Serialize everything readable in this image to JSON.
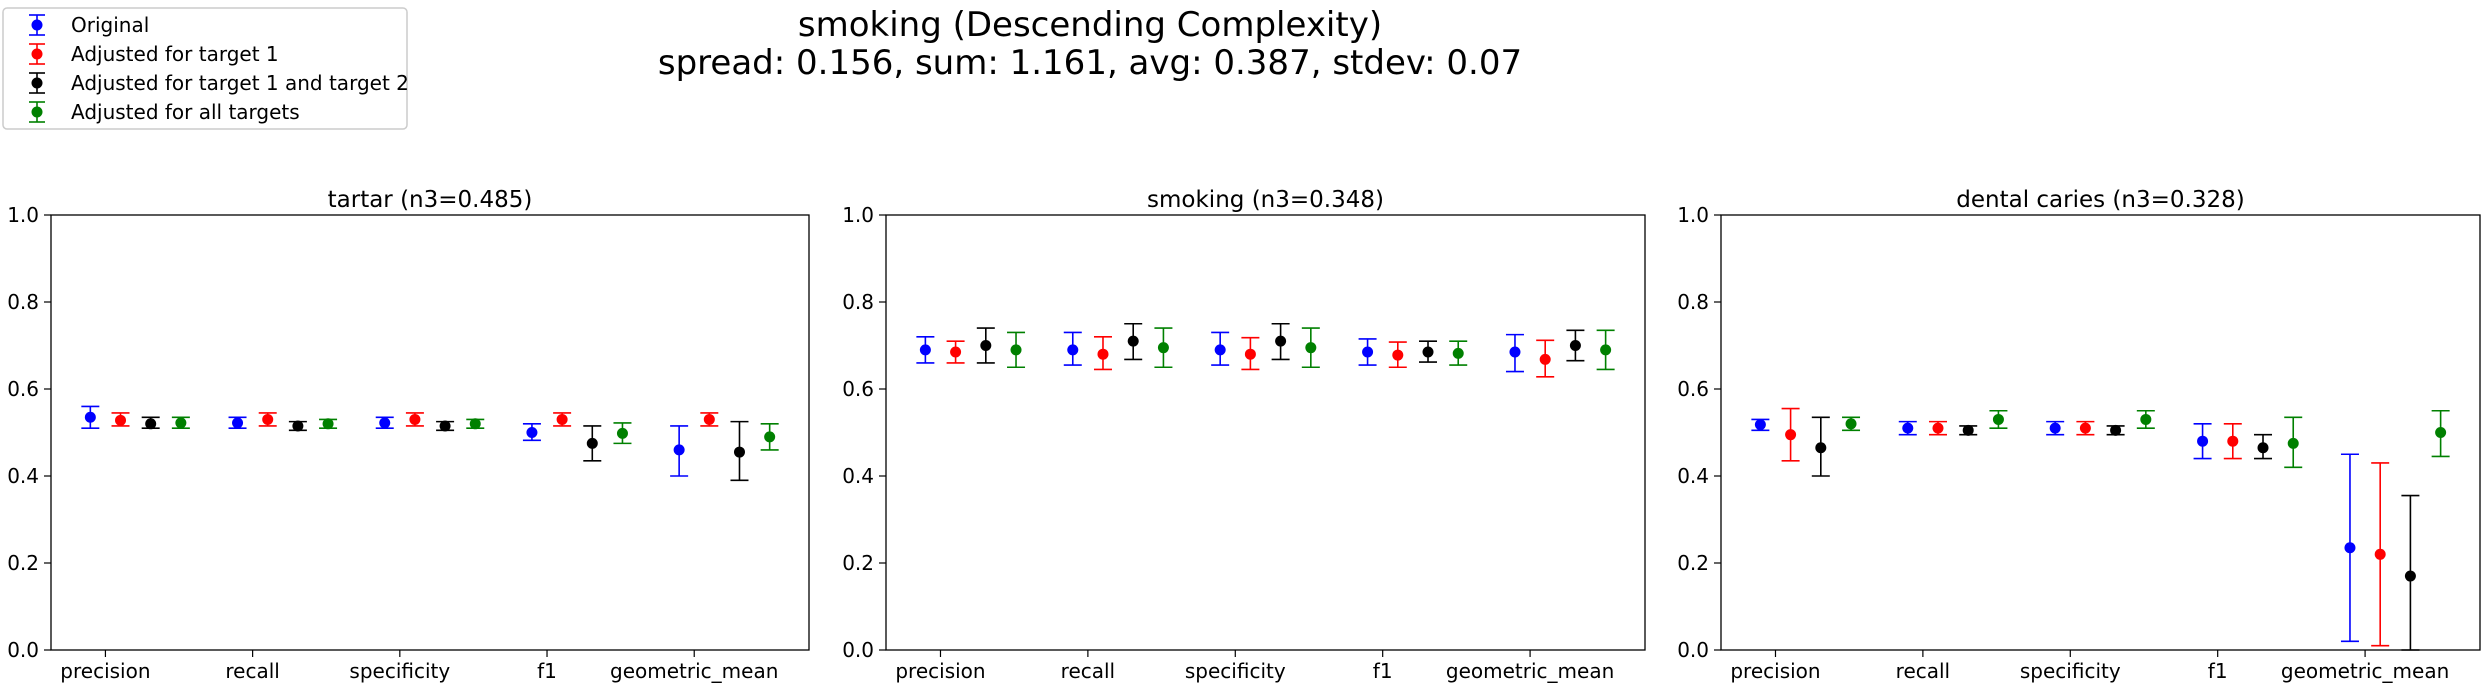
{
  "figure": {
    "title_line1": "smoking (Descending Complexity)",
    "title_line2": "spread: 0.156, sum: 1.161, avg: 0.387, stdev: 0.07"
  },
  "legend": {
    "placement": "top-left",
    "entries": [
      {
        "label": "Original",
        "color": "#0000ff"
      },
      {
        "label": "Adjusted for target 1",
        "color": "#ff0000"
      },
      {
        "label": "Adjusted for target 1 and target 2",
        "color": "#000000"
      },
      {
        "label": "Adjusted for all targets",
        "color": "#008000"
      }
    ]
  },
  "chart_data": [
    {
      "type": "scatter",
      "title": "tartar (n3=0.485)",
      "categories": [
        "precision",
        "recall",
        "specificity",
        "f1",
        "geometric_mean"
      ],
      "ylim": [
        0,
        1
      ],
      "yticks": [
        "0.0",
        "0.2",
        "0.4",
        "0.6",
        "0.8",
        "1.0"
      ],
      "grid": false,
      "series": [
        {
          "name": "Original",
          "color": "#0000ff",
          "values": [
            0.535,
            0.522,
            0.522,
            0.5,
            0.46
          ],
          "err_low": [
            0.51,
            0.51,
            0.51,
            0.482,
            0.4
          ],
          "err_high": [
            0.56,
            0.535,
            0.535,
            0.52,
            0.515
          ]
        },
        {
          "name": "Adjusted for target 1",
          "color": "#ff0000",
          "values": [
            0.528,
            0.53,
            0.53,
            0.53,
            0.53
          ],
          "err_low": [
            0.515,
            0.515,
            0.515,
            0.515,
            0.515
          ],
          "err_high": [
            0.545,
            0.545,
            0.545,
            0.545,
            0.545
          ]
        },
        {
          "name": "Adjusted for target 1 and target 2",
          "color": "#000000",
          "values": [
            0.52,
            0.515,
            0.515,
            0.475,
            0.455
          ],
          "err_low": [
            0.51,
            0.505,
            0.505,
            0.435,
            0.39
          ],
          "err_high": [
            0.535,
            0.525,
            0.525,
            0.515,
            0.525
          ]
        },
        {
          "name": "Adjusted for all targets",
          "color": "#008000",
          "values": [
            0.522,
            0.52,
            0.52,
            0.498,
            0.49
          ],
          "err_low": [
            0.51,
            0.51,
            0.51,
            0.475,
            0.46
          ],
          "err_high": [
            0.535,
            0.53,
            0.53,
            0.522,
            0.52
          ]
        }
      ]
    },
    {
      "type": "scatter",
      "title": "smoking (n3=0.348)",
      "categories": [
        "precision",
        "recall",
        "specificity",
        "f1",
        "geometric_mean"
      ],
      "ylim": [
        0,
        1
      ],
      "yticks": [
        "0.0",
        "0.2",
        "0.4",
        "0.6",
        "0.8",
        "1.0"
      ],
      "grid": false,
      "series": [
        {
          "name": "Original",
          "color": "#0000ff",
          "values": [
            0.69,
            0.69,
            0.69,
            0.685,
            0.685
          ],
          "err_low": [
            0.66,
            0.655,
            0.655,
            0.655,
            0.64
          ],
          "err_high": [
            0.72,
            0.73,
            0.73,
            0.715,
            0.725
          ]
        },
        {
          "name": "Adjusted for target 1",
          "color": "#ff0000",
          "values": [
            0.685,
            0.68,
            0.68,
            0.678,
            0.668
          ],
          "err_low": [
            0.66,
            0.645,
            0.645,
            0.65,
            0.628
          ],
          "err_high": [
            0.71,
            0.72,
            0.718,
            0.708,
            0.712
          ]
        },
        {
          "name": "Adjusted for target 1 and target 2",
          "color": "#000000",
          "values": [
            0.7,
            0.71,
            0.71,
            0.685,
            0.7
          ],
          "err_low": [
            0.66,
            0.668,
            0.668,
            0.662,
            0.665
          ],
          "err_high": [
            0.74,
            0.75,
            0.75,
            0.71,
            0.735
          ]
        },
        {
          "name": "Adjusted for all targets",
          "color": "#008000",
          "values": [
            0.69,
            0.695,
            0.695,
            0.682,
            0.69
          ],
          "err_low": [
            0.65,
            0.65,
            0.65,
            0.655,
            0.645
          ],
          "err_high": [
            0.73,
            0.74,
            0.74,
            0.71,
            0.735
          ]
        }
      ]
    },
    {
      "type": "scatter",
      "title": "dental caries (n3=0.328)",
      "categories": [
        "precision",
        "recall",
        "specificity",
        "f1",
        "geometric_mean"
      ],
      "ylim": [
        0,
        1
      ],
      "yticks": [
        "0.0",
        "0.2",
        "0.4",
        "0.6",
        "0.8",
        "1.0"
      ],
      "grid": false,
      "series": [
        {
          "name": "Original",
          "color": "#0000ff",
          "values": [
            0.518,
            0.51,
            0.51,
            0.48,
            0.235
          ],
          "err_low": [
            0.505,
            0.495,
            0.495,
            0.44,
            0.02
          ],
          "err_high": [
            0.53,
            0.525,
            0.525,
            0.52,
            0.45
          ]
        },
        {
          "name": "Adjusted for target 1",
          "color": "#ff0000",
          "values": [
            0.495,
            0.51,
            0.51,
            0.48,
            0.22
          ],
          "err_low": [
            0.435,
            0.495,
            0.495,
            0.44,
            0.01
          ],
          "err_high": [
            0.555,
            0.525,
            0.525,
            0.52,
            0.43
          ]
        },
        {
          "name": "Adjusted for target 1 and target 2",
          "color": "#000000",
          "values": [
            0.465,
            0.505,
            0.505,
            0.465,
            0.17
          ],
          "err_low": [
            0.4,
            0.495,
            0.495,
            0.44,
            0.0
          ],
          "err_high": [
            0.535,
            0.515,
            0.515,
            0.495,
            0.355
          ]
        },
        {
          "name": "Adjusted for all targets",
          "color": "#008000",
          "values": [
            0.52,
            0.53,
            0.53,
            0.475,
            0.5
          ],
          "err_low": [
            0.505,
            0.51,
            0.51,
            0.42,
            0.445
          ],
          "err_high": [
            0.535,
            0.55,
            0.55,
            0.535,
            0.55
          ]
        }
      ]
    }
  ]
}
